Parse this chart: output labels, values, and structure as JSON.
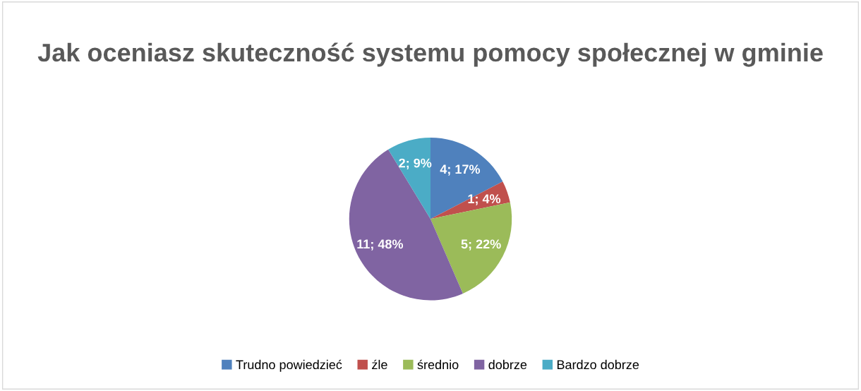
{
  "chart_data": {
    "type": "pie",
    "title": "Jak oceniasz skuteczność systemu pomocy społecznej w gminie",
    "categories": [
      "Trudno powiedzieć",
      "źle",
      "średnio",
      "dobrze",
      "Bardzo dobrze"
    ],
    "values": [
      4,
      1,
      5,
      11,
      2
    ],
    "value_labels": [
      "4; 17%",
      "1; 4%",
      "5; 22%",
      "11; 48%",
      "2; 9%"
    ],
    "colors": [
      "#4f81bd",
      "#c0504d",
      "#9bbb59",
      "#8064a2",
      "#4bacc6"
    ],
    "legend": "bottom"
  }
}
